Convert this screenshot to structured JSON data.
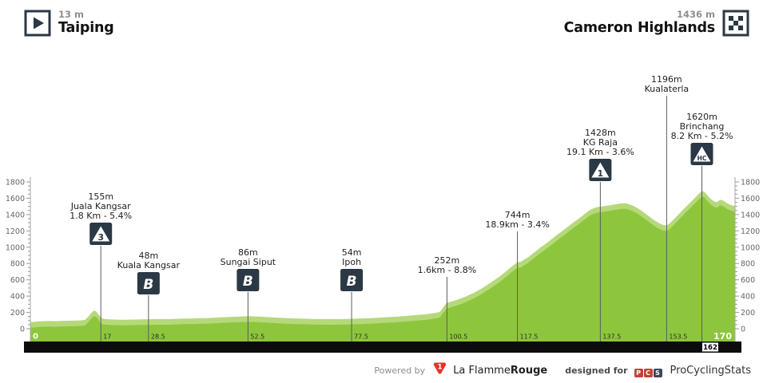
{
  "header": {
    "start": {
      "elevation": "13 m",
      "name": "Taiping"
    },
    "finish": {
      "elevation": "1436 m",
      "name": "Cameron Highlands"
    }
  },
  "colors": {
    "green_main": "#8dc63c",
    "green_light": "#b5d97a",
    "icon_bg": "#2b3845",
    "black_bar": "#0c0c0c",
    "axis_gray": "#999999",
    "marker_text": "#222222",
    "lfr_red": "#e6332a",
    "pcs_red": "#c64138",
    "pcs_dark": "#3d4757"
  },
  "chart_data": {
    "type": "area",
    "title": "",
    "xlim": [
      0,
      170
    ],
    "ylim": [
      0,
      1900
    ],
    "grid": false,
    "y_ticks": [
      0,
      200,
      400,
      600,
      800,
      1000,
      1200,
      1400,
      1600,
      1800
    ],
    "x_ticks": [
      0,
      17,
      28.5,
      52.5,
      77.5,
      100.5,
      117.5,
      137.5,
      153.5,
      170
    ],
    "extra_x_label": {
      "km": 162,
      "text": "162"
    },
    "markers": [
      {
        "km": 17,
        "elevation_label": "155m",
        "name": "Juala Kangsar",
        "detail": "1.8 Km - 5.4%",
        "icon": "cat3",
        "label_y": 240
      },
      {
        "km": 28.5,
        "elevation_label": "48m",
        "name": "Kuala Kangsar",
        "detail": "",
        "icon": "sprint",
        "label_y": 314
      },
      {
        "km": 52.5,
        "elevation_label": "86m",
        "name": "Sungai Siput",
        "detail": "",
        "icon": "sprint",
        "label_y": 310
      },
      {
        "km": 77.5,
        "elevation_label": "54m",
        "name": "Ipoh",
        "detail": "",
        "icon": "sprint",
        "label_y": 310
      },
      {
        "km": 100.5,
        "elevation_label": "252m",
        "name": "",
        "detail": "1.6km - 8.8%",
        "icon": "",
        "label_y": 320
      },
      {
        "km": 117.5,
        "elevation_label": "744m",
        "name": "",
        "detail": "18.9km - 3.4%",
        "icon": "",
        "label_y": 263
      },
      {
        "km": 137.5,
        "elevation_label": "1428m",
        "name": "KG Raja",
        "detail": "19.1 Km - 3.6%",
        "icon": "cat1",
        "label_y": 160
      },
      {
        "km": 153.5,
        "elevation_label": "1196m",
        "name": "Kualaterla",
        "detail": "",
        "icon": "",
        "label_y": 93
      },
      {
        "km": 162,
        "elevation_label": "1620m",
        "name": "Brinchang",
        "detail": "8.2 Km - 5.2%",
        "icon": "hc",
        "label_y": 140
      }
    ],
    "profile": [
      [
        0,
        13
      ],
      [
        2,
        22
      ],
      [
        4,
        26
      ],
      [
        6,
        24
      ],
      [
        8,
        28
      ],
      [
        10,
        30
      ],
      [
        12,
        33
      ],
      [
        13.2,
        40
      ],
      [
        14,
        80
      ],
      [
        14.7,
        125
      ],
      [
        15.3,
        155
      ],
      [
        15.8,
        148
      ],
      [
        16.3,
        115
      ],
      [
        16.8,
        80
      ],
      [
        17.3,
        58
      ],
      [
        18,
        50
      ],
      [
        20,
        44
      ],
      [
        22,
        41
      ],
      [
        24,
        43
      ],
      [
        26,
        45
      ],
      [
        28.5,
        48
      ],
      [
        31,
        50
      ],
      [
        33,
        49
      ],
      [
        35,
        53
      ],
      [
        37,
        56
      ],
      [
        39,
        58
      ],
      [
        41,
        61
      ],
      [
        43,
        64
      ],
      [
        45,
        68
      ],
      [
        47,
        73
      ],
      [
        49,
        78
      ],
      [
        51,
        82
      ],
      [
        52.5,
        86
      ],
      [
        54,
        83
      ],
      [
        56,
        78
      ],
      [
        58,
        72
      ],
      [
        60,
        67
      ],
      [
        62,
        62
      ],
      [
        64,
        58
      ],
      [
        66,
        55
      ],
      [
        68,
        52
      ],
      [
        70,
        50
      ],
      [
        72,
        49
      ],
      [
        74,
        50
      ],
      [
        76,
        52
      ],
      [
        77.5,
        54
      ],
      [
        79,
        56
      ],
      [
        81,
        60
      ],
      [
        83,
        64
      ],
      [
        85,
        70
      ],
      [
        87,
        76
      ],
      [
        89,
        82
      ],
      [
        91,
        90
      ],
      [
        93,
        98
      ],
      [
        95,
        108
      ],
      [
        96.5,
        116
      ],
      [
        98,
        128
      ],
      [
        98.9,
        142
      ],
      [
        99.6,
        195
      ],
      [
        100.5,
        252
      ],
      [
        101.2,
        258
      ],
      [
        102,
        272
      ],
      [
        103,
        288
      ],
      [
        104,
        305
      ],
      [
        105,
        325
      ],
      [
        106,
        350
      ],
      [
        107,
        372
      ],
      [
        108,
        400
      ],
      [
        109,
        428
      ],
      [
        110,
        462
      ],
      [
        111,
        495
      ],
      [
        112,
        530
      ],
      [
        113,
        565
      ],
      [
        114,
        605
      ],
      [
        115,
        645
      ],
      [
        116,
        690
      ],
      [
        117,
        728
      ],
      [
        117.5,
        744
      ],
      [
        118.3,
        752
      ],
      [
        119,
        775
      ],
      [
        120,
        805
      ],
      [
        121,
        845
      ],
      [
        122,
        885
      ],
      [
        123,
        925
      ],
      [
        124,
        962
      ],
      [
        125,
        1000
      ],
      [
        126,
        1040
      ],
      [
        127,
        1080
      ],
      [
        128,
        1118
      ],
      [
        129,
        1155
      ],
      [
        130,
        1195
      ],
      [
        131,
        1235
      ],
      [
        132,
        1272
      ],
      [
        133,
        1310
      ],
      [
        134,
        1350
      ],
      [
        135,
        1388
      ],
      [
        136,
        1412
      ],
      [
        137,
        1425
      ],
      [
        137.5,
        1428
      ],
      [
        138.5,
        1435
      ],
      [
        139.5,
        1443
      ],
      [
        140.5,
        1452
      ],
      [
        141.5,
        1460
      ],
      [
        142.5,
        1468
      ],
      [
        143.5,
        1470
      ],
      [
        144.5,
        1458
      ],
      [
        145.5,
        1438
      ],
      [
        146.5,
        1410
      ],
      [
        147.5,
        1375
      ],
      [
        148.5,
        1338
      ],
      [
        149.5,
        1300
      ],
      [
        150.5,
        1262
      ],
      [
        151.5,
        1230
      ],
      [
        152.5,
        1207
      ],
      [
        153.5,
        1196
      ],
      [
        154.3,
        1225
      ],
      [
        155,
        1262
      ],
      [
        156,
        1315
      ],
      [
        157,
        1368
      ],
      [
        158,
        1418
      ],
      [
        159,
        1468
      ],
      [
        160,
        1520
      ],
      [
        161,
        1572
      ],
      [
        161.6,
        1600
      ],
      [
        162,
        1620
      ],
      [
        162.6,
        1612
      ],
      [
        163.2,
        1575
      ],
      [
        164,
        1528
      ],
      [
        164.8,
        1498
      ],
      [
        165.6,
        1482
      ],
      [
        166.4,
        1512
      ],
      [
        167.2,
        1502
      ],
      [
        168,
        1472
      ],
      [
        168.8,
        1452
      ],
      [
        169.4,
        1442
      ],
      [
        170,
        1436
      ]
    ]
  },
  "footer": {
    "powered_by": "Powered by",
    "lfr": {
      "name_regular": "La Flamme",
      "name_bold": "Rouge",
      "logo_digit": "1"
    },
    "designed_for": "designed for",
    "pcs": {
      "letters": [
        "P",
        "C",
        "S"
      ],
      "name": "ProCyclingStats"
    }
  }
}
